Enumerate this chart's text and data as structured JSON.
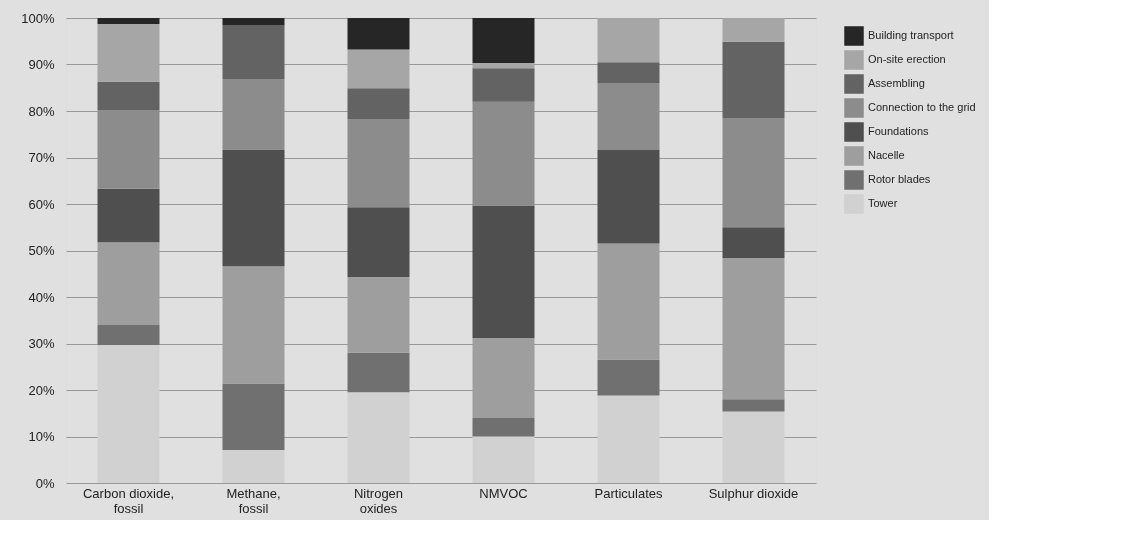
{
  "chart_data": {
    "type": "bar",
    "stacked": true,
    "categories": [
      "Carbon dioxide,\nfossil",
      "Methane,\nfossil",
      "Nitrogen\noxides",
      "NMVOC",
      "Particulates",
      "Sulphur dioxide"
    ],
    "series": [
      {
        "name": "Tower",
        "color": "#d1d1d1",
        "values": [
          29.7,
          7.1,
          19.5,
          10.0,
          18.8,
          15.4
        ]
      },
      {
        "name": "Rotor blades",
        "color": "#707070",
        "values": [
          4.3,
          14.3,
          8.5,
          4.0,
          7.7,
          2.6
        ]
      },
      {
        "name": "Nacelle",
        "color": "#9e9e9e",
        "values": [
          17.8,
          25.2,
          16.3,
          17.2,
          25.0,
          30.4
        ]
      },
      {
        "name": "Foundations",
        "color": "#4f4f4f",
        "values": [
          11.5,
          25.1,
          15.0,
          28.5,
          20.1,
          6.6
        ]
      },
      {
        "name": "Connection to the grid",
        "color": "#8c8c8c",
        "values": [
          16.9,
          15.2,
          19.0,
          22.3,
          14.4,
          23.5
        ]
      },
      {
        "name": "Assembling",
        "color": "#636363",
        "values": [
          6.1,
          11.5,
          6.6,
          7.2,
          4.5,
          16.4
        ]
      },
      {
        "name": "On-site erection",
        "color": "#a6a6a6",
        "values": [
          12.4,
          null,
          8.3,
          1.1,
          9.5,
          5.1
        ]
      },
      {
        "name": "Building transport",
        "color": "#262626",
        "values": [
          1.3,
          1.6,
          6.8,
          9.7,
          null,
          null
        ]
      }
    ],
    "ylim": [
      0,
      100
    ],
    "yticks": [
      {
        "value": 0,
        "label": "0%"
      },
      {
        "value": 10,
        "label": "10%"
      },
      {
        "value": 20,
        "label": "20%"
      },
      {
        "value": 30,
        "label": "30%"
      },
      {
        "value": 40,
        "label": "40%"
      },
      {
        "value": 50,
        "label": "50%"
      },
      {
        "value": 60,
        "label": "60%"
      },
      {
        "value": 70,
        "label": "70%"
      },
      {
        "value": 80,
        "label": "80%"
      },
      {
        "value": 90,
        "label": "90%"
      },
      {
        "value": 100,
        "label": "100%"
      }
    ],
    "grid": "y",
    "legend": "right"
  }
}
